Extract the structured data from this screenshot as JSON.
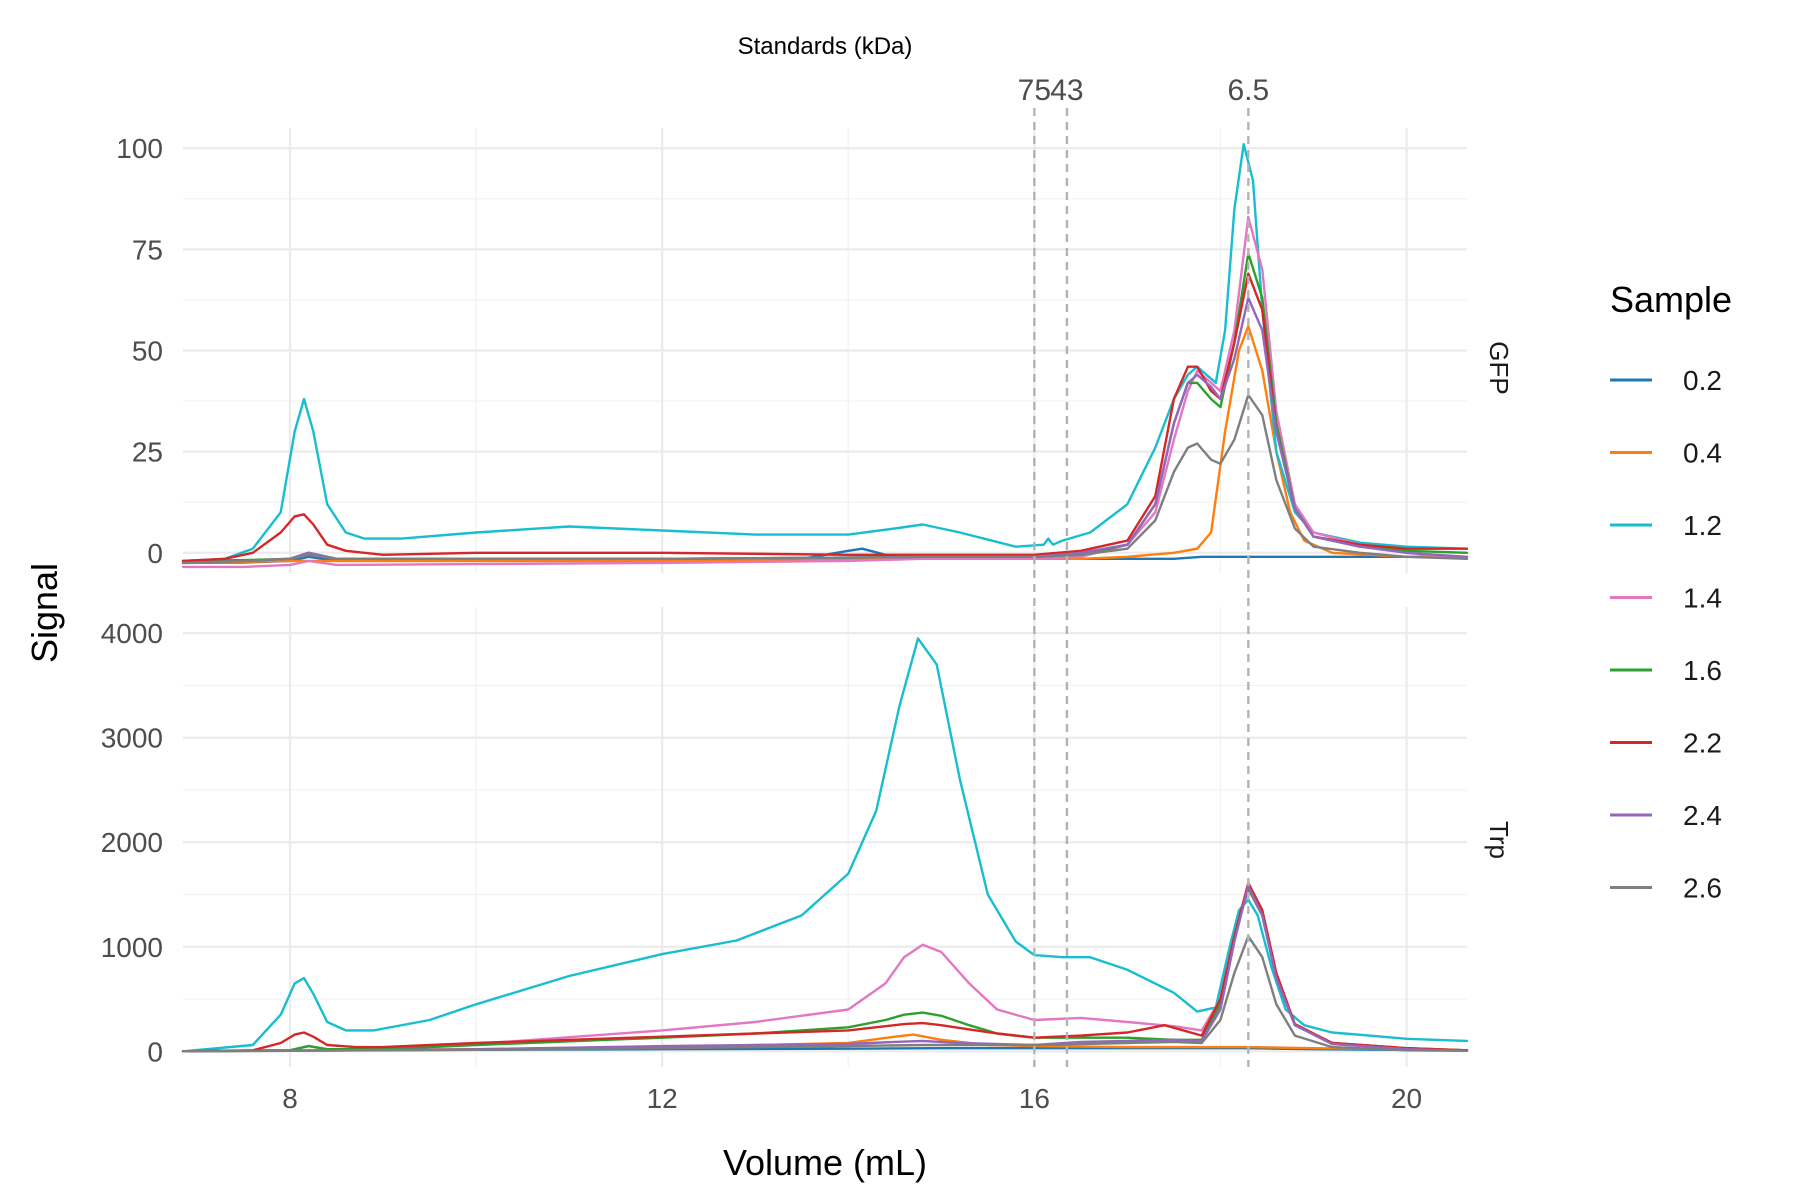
{
  "chart_data": {
    "type": "line",
    "xlabel": "Volume (mL)",
    "ylabel": "Signal",
    "xlim": [
      6.85,
      20.65
    ],
    "x_ticks": [
      8,
      12,
      16,
      20
    ],
    "secondary_axis": {
      "title": "Standards (kDa)",
      "standards": [
        {
          "label": "75",
          "x": 16.0
        },
        {
          "label": "43",
          "x": 16.35
        },
        {
          "label": "6.5",
          "x": 18.3
        }
      ]
    },
    "legend": {
      "title": "Sample",
      "position": "right"
    },
    "series_colors": {
      "0.2": "#1f77b4",
      "0.4": "#ff7f0e",
      "1.2": "#17becf",
      "1.4": "#e377c2",
      "1.6": "#2ca02c",
      "2.2": "#d62728",
      "2.4": "#9467bd",
      "2.6": "#7f7f7f"
    },
    "series_names": [
      "0.2",
      "0.4",
      "1.2",
      "1.4",
      "1.6",
      "2.2",
      "2.4",
      "2.6"
    ],
    "panels": [
      {
        "name": "GFP",
        "ylim": [
          -5,
          105
        ],
        "y_ticks": [
          0,
          25,
          50,
          75,
          100
        ],
        "series": [
          {
            "name": "0.2",
            "x": [
              6.85,
              7.5,
              8.0,
              8.2,
              8.5,
              10,
              12,
              13.5,
              14.0,
              14.15,
              14.4,
              14.8,
              16,
              17,
              17.5,
              17.8,
              18.3,
              19,
              20,
              20.65
            ],
            "y": [
              -2.5,
              -2.4,
              -2,
              -1,
              -2,
              -2,
              -2,
              -1.5,
              0.5,
              1,
              -0.5,
              -1.5,
              -1.5,
              -1.5,
              -1.5,
              -1,
              -1,
              -1,
              -1,
              -1
            ]
          },
          {
            "name": "0.4",
            "x": [
              6.85,
              8,
              10,
              12,
              14,
              14.8,
              16,
              16.5,
              17.0,
              17.5,
              17.75,
              17.9,
              18.05,
              18.2,
              18.3,
              18.45,
              18.6,
              18.75,
              18.9,
              19.2,
              20,
              20.65
            ],
            "y": [
              -2.5,
              -2,
              -2,
              -2,
              -1.5,
              -1.2,
              -1.5,
              -1.5,
              -1,
              0,
              1,
              5,
              30,
              50,
              56,
              45,
              25,
              10,
              3,
              0,
              -1,
              -1
            ]
          },
          {
            "name": "1.2",
            "x": [
              6.85,
              7.3,
              7.6,
              7.9,
              8.05,
              8.15,
              8.25,
              8.4,
              8.6,
              8.8,
              9.2,
              10,
              11,
              12,
              13,
              14,
              14.5,
              14.8,
              15.2,
              15.8,
              16.1,
              16.15,
              16.2,
              16.3,
              16.6,
              17.0,
              17.3,
              17.5,
              17.65,
              17.75,
              17.85,
              17.95,
              18.05,
              18.15,
              18.25,
              18.35,
              18.45,
              18.6,
              18.8,
              19.0,
              19.5,
              20,
              20.65
            ],
            "y": [
              -2,
              -1.5,
              1,
              10,
              30,
              38,
              30,
              12,
              5,
              3.5,
              3.5,
              5,
              6.5,
              5.5,
              4.5,
              4.5,
              6,
              7,
              5,
              1.5,
              2,
              3.5,
              2,
              3,
              5,
              12,
              26,
              38,
              44,
              46,
              44,
              42,
              55,
              85,
              101,
              92,
              60,
              25,
              10,
              5,
              2.5,
              1.5,
              1
            ]
          },
          {
            "name": "1.4",
            "x": [
              6.85,
              7.5,
              8.0,
              8.2,
              8.5,
              10,
              12,
              14,
              14.8,
              16,
              16.5,
              17.0,
              17.3,
              17.5,
              17.65,
              17.75,
              17.9,
              18.0,
              18.15,
              18.3,
              18.45,
              18.6,
              18.8,
              19.0,
              19.5,
              20,
              20.65
            ],
            "y": [
              -3.5,
              -3.5,
              -3,
              -2,
              -3,
              -2.8,
              -2.5,
              -2,
              -1.5,
              -1.5,
              -1,
              2,
              10,
              28,
              40,
              45,
              42,
              40,
              55,
              83,
              70,
              35,
              12,
              5,
              2,
              0,
              -1.5
            ]
          },
          {
            "name": "1.6",
            "x": [
              6.85,
              7.5,
              8.0,
              8.2,
              8.5,
              10,
              12,
              14,
              14.8,
              16,
              16.5,
              17.0,
              17.3,
              17.5,
              17.65,
              17.75,
              17.9,
              18.0,
              18.15,
              18.3,
              18.45,
              18.6,
              18.8,
              19.0,
              19.5,
              20,
              20.65
            ],
            "y": [
              -2,
              -1.8,
              -1.5,
              0,
              -1.5,
              -1.5,
              -1.5,
              -1.2,
              -1,
              -1,
              -0.5,
              2,
              12,
              32,
              42,
              42,
              38,
              36,
              52,
              74,
              63,
              32,
              11,
              4,
              1.5,
              0.5,
              0
            ]
          },
          {
            "name": "2.2",
            "x": [
              6.85,
              7.3,
              7.6,
              7.9,
              8.05,
              8.15,
              8.25,
              8.4,
              8.6,
              9,
              10,
              12,
              14,
              14.8,
              16,
              16.5,
              17.0,
              17.3,
              17.5,
              17.65,
              17.75,
              17.9,
              18.0,
              18.15,
              18.3,
              18.45,
              18.6,
              18.8,
              19.0,
              19.5,
              20,
              20.65
            ],
            "y": [
              -2,
              -1.5,
              0,
              5,
              9,
              9.5,
              7,
              2,
              0.5,
              -0.5,
              0,
              0,
              -0.5,
              -0.5,
              -0.5,
              0.5,
              3,
              14,
              38,
              46,
              46,
              40,
              38,
              52,
              69,
              60,
              30,
              11,
              4,
              2,
              1,
              1
            ]
          },
          {
            "name": "2.4",
            "x": [
              6.85,
              7.5,
              8.0,
              8.2,
              8.5,
              10,
              12,
              14,
              14.8,
              16,
              16.5,
              17.0,
              17.3,
              17.5,
              17.65,
              17.75,
              17.9,
              18.0,
              18.15,
              18.3,
              18.45,
              18.6,
              18.8,
              19.0,
              19.5,
              20,
              20.65
            ],
            "y": [
              -2.5,
              -2,
              -1.5,
              0,
              -1.5,
              -1.5,
              -1.5,
              -1.2,
              -1,
              -1,
              0,
              2,
              12,
              32,
              42,
              44,
              41,
              38,
              48,
              63,
              55,
              30,
              11,
              4,
              1.5,
              0,
              -1
            ]
          },
          {
            "name": "2.6",
            "x": [
              6.85,
              7.5,
              8.0,
              8.2,
              8.5,
              10,
              12,
              14,
              14.8,
              16,
              16.5,
              17.0,
              17.3,
              17.5,
              17.65,
              17.75,
              17.9,
              18.0,
              18.15,
              18.3,
              18.45,
              18.6,
              18.8,
              19.0,
              19.5,
              20,
              20.65
            ],
            "y": [
              -2.5,
              -2,
              -1.5,
              -0.5,
              -1.5,
              -1.5,
              -1.5,
              -1.2,
              -1,
              -1,
              -0.5,
              1,
              8,
              20,
              26,
              27,
              23,
              22,
              28,
              39,
              34,
              18,
              6,
              1.5,
              0,
              -1,
              -1.5
            ]
          }
        ]
      },
      {
        "name": "Trp",
        "ylim": [
          -150,
          4250
        ],
        "y_ticks": [
          0,
          1000,
          2000,
          3000,
          4000
        ],
        "series": [
          {
            "name": "0.2",
            "x": [
              6.85,
              8,
              10,
              12,
              14,
              15,
              16,
              17,
              18,
              18.3,
              19,
              20,
              20.65
            ],
            "y": [
              0,
              10,
              15,
              20,
              25,
              30,
              30,
              30,
              30,
              30,
              20,
              15,
              10
            ]
          },
          {
            "name": "0.4",
            "x": [
              6.85,
              8,
              10,
              12,
              14,
              14.5,
              14.7,
              15,
              15.5,
              16,
              17,
              18,
              18.3,
              19,
              20,
              20.65
            ],
            "y": [
              0,
              10,
              20,
              40,
              80,
              140,
              160,
              110,
              60,
              50,
              40,
              40,
              40,
              30,
              20,
              10
            ]
          },
          {
            "name": "1.2",
            "x": [
              6.85,
              7.6,
              7.9,
              8.05,
              8.15,
              8.25,
              8.4,
              8.6,
              8.9,
              9.5,
              10,
              11,
              12,
              12.8,
              13.5,
              14.0,
              14.3,
              14.55,
              14.75,
              14.95,
              15.2,
              15.5,
              15.8,
              16.0,
              16.3,
              16.6,
              17.0,
              17.5,
              17.75,
              17.95,
              18.1,
              18.2,
              18.3,
              18.4,
              18.55,
              18.7,
              18.9,
              19.2,
              19.6,
              20,
              20.65
            ],
            "y": [
              0,
              60,
              350,
              650,
              700,
              550,
              280,
              200,
              200,
              300,
              450,
              720,
              930,
              1060,
              1300,
              1700,
              2300,
              3300,
              3950,
              3700,
              2600,
              1500,
              1050,
              920,
              900,
              900,
              780,
              560,
              380,
              420,
              1000,
              1350,
              1450,
              1300,
              800,
              400,
              250,
              180,
              150,
              120,
              100
            ]
          },
          {
            "name": "1.4",
            "x": [
              6.85,
              8,
              8.2,
              8.4,
              9,
              10,
              12,
              13,
              14,
              14.4,
              14.6,
              14.8,
              15.0,
              15.3,
              15.6,
              16,
              16.5,
              17.0,
              17.5,
              17.8,
              18.0,
              18.15,
              18.3,
              18.45,
              18.6,
              18.8,
              19.2,
              20,
              20.65
            ],
            "y": [
              0,
              10,
              50,
              20,
              20,
              70,
              200,
              280,
              400,
              650,
              900,
              1020,
              950,
              650,
              400,
              300,
              320,
              280,
              240,
              200,
              500,
              1100,
              1550,
              1300,
              700,
              250,
              80,
              30,
              10
            ]
          },
          {
            "name": "1.6",
            "x": [
              6.85,
              8,
              8.2,
              8.4,
              9,
              10,
              12,
              13,
              14,
              14.4,
              14.6,
              14.8,
              15.0,
              15.3,
              15.6,
              16,
              16.5,
              17.0,
              17.5,
              17.8,
              18.0,
              18.15,
              18.3,
              18.45,
              18.6,
              18.8,
              19.2,
              20,
              20.65
            ],
            "y": [
              0,
              10,
              50,
              20,
              20,
              60,
              130,
              170,
              230,
              300,
              350,
              370,
              340,
              250,
              170,
              130,
              130,
              130,
              110,
              110,
              450,
              1100,
              1560,
              1300,
              700,
              250,
              80,
              30,
              10
            ]
          },
          {
            "name": "2.2",
            "x": [
              6.85,
              7.6,
              7.9,
              8.05,
              8.15,
              8.25,
              8.4,
              8.7,
              9,
              10,
              12,
              13,
              14,
              14.4,
              14.6,
              14.8,
              15.0,
              15.3,
              15.6,
              16,
              16.5,
              17.0,
              17.4,
              17.6,
              17.8,
              18.0,
              18.15,
              18.3,
              18.45,
              18.6,
              18.8,
              19.2,
              20,
              20.65
            ],
            "y": [
              0,
              10,
              80,
              160,
              180,
              140,
              60,
              40,
              40,
              80,
              140,
              170,
              200,
              240,
              260,
              270,
              250,
              210,
              170,
              130,
              150,
              180,
              250,
              200,
              150,
              500,
              1100,
              1610,
              1350,
              750,
              260,
              80,
              30,
              10
            ]
          },
          {
            "name": "2.4",
            "x": [
              6.85,
              8,
              10,
              12,
              14,
              14.5,
              14.8,
              15.2,
              16,
              16.5,
              17.0,
              17.5,
              17.8,
              18.0,
              18.15,
              18.3,
              18.45,
              18.6,
              18.8,
              19.2,
              20,
              20.65
            ],
            "y": [
              0,
              5,
              20,
              50,
              70,
              90,
              100,
              80,
              60,
              90,
              100,
              110,
              100,
              400,
              1050,
              1580,
              1300,
              700,
              250,
              70,
              20,
              5
            ]
          },
          {
            "name": "2.6",
            "x": [
              6.85,
              8,
              10,
              12,
              14,
              14.8,
              16,
              16.5,
              17.0,
              17.5,
              17.8,
              18.0,
              18.15,
              18.3,
              18.45,
              18.6,
              18.8,
              19.2,
              20,
              20.65
            ],
            "y": [
              0,
              5,
              15,
              30,
              50,
              60,
              60,
              70,
              80,
              90,
              80,
              300,
              750,
              1100,
              900,
              450,
              150,
              40,
              10,
              5
            ]
          }
        ]
      }
    ]
  }
}
